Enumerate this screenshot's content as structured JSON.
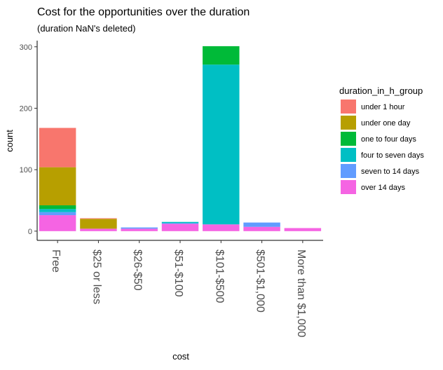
{
  "chart_data": {
    "type": "bar",
    "stacked": true,
    "title": "Cost for the opportunities over the duration",
    "subtitle": "(duration NaN's deleted)",
    "xlabel": "cost",
    "ylabel": "count",
    "ylim": [
      -15,
      310
    ],
    "yticks": [
      0,
      100,
      200,
      300
    ],
    "categories": [
      "Free",
      "$25 or less",
      "$26-$50",
      "$51-$100",
      "$101-$500",
      "$501-$1,000",
      "More than $1,000"
    ],
    "legend": {
      "title": "duration_in_h_group",
      "position": "right"
    },
    "series": [
      {
        "name": "under 1 hour",
        "color": "#F8766D",
        "values": [
          64,
          1,
          0,
          0,
          0,
          0,
          0
        ]
      },
      {
        "name": "under one day",
        "color": "#B79F00",
        "values": [
          62,
          16,
          0,
          0,
          0,
          0,
          0
        ]
      },
      {
        "name": "one to four days",
        "color": "#00BA38",
        "values": [
          6,
          0,
          0,
          0,
          30,
          0,
          0
        ]
      },
      {
        "name": "four to seven days",
        "color": "#00BFC4",
        "values": [
          5,
          0,
          0,
          2,
          260,
          0,
          0
        ]
      },
      {
        "name": "seven to 14 days",
        "color": "#619CFF",
        "values": [
          5,
          0,
          2,
          1,
          0,
          7,
          0
        ]
      },
      {
        "name": "over 14 days",
        "color": "#F564E3",
        "values": [
          26,
          4,
          4,
          12,
          11,
          7,
          5
        ]
      }
    ]
  }
}
